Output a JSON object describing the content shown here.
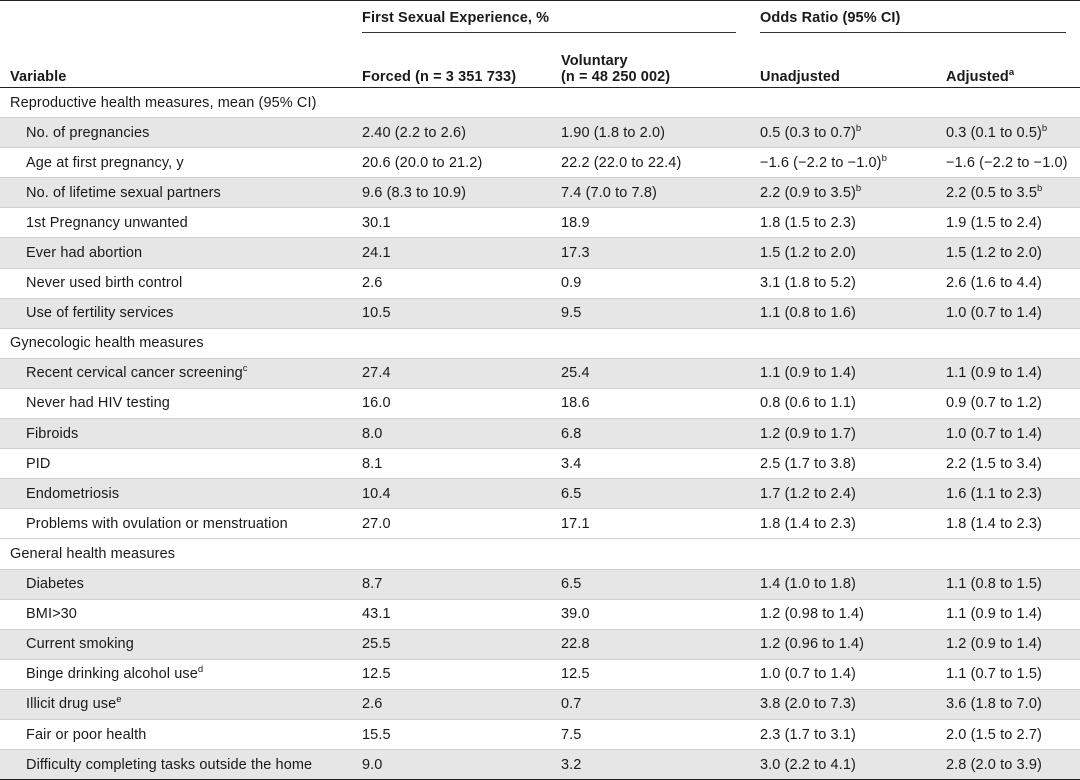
{
  "header": {
    "variable_label": "Variable",
    "group1_label": "First Sexual Experience, %",
    "group2_label": "Odds Ratio (95% CI)",
    "forced_label": "Forced (n = 3 351 733)",
    "voluntary_line1": "Voluntary",
    "voluntary_line2": "(n = 48 250 002)",
    "unadjusted_label": "Unadjusted",
    "adjusted_label": "Adjusted",
    "adjusted_sup": "a"
  },
  "sections": [
    {
      "title": "Reproductive health measures, mean (95% CI)",
      "rows": [
        {
          "variable": "No. of pregnancies",
          "variable_sup": "",
          "forced": "2.40 (2.2 to 2.6)",
          "voluntary": "1.90 (1.8 to 2.0)",
          "unadjusted": "0.5 (0.3 to 0.7)",
          "unadjusted_sup": "b",
          "adjusted": "0.3 (0.1 to 0.5)",
          "adjusted_sup": "b"
        },
        {
          "variable": "Age at first pregnancy, y",
          "variable_sup": "",
          "forced": "20.6 (20.0 to 21.2)",
          "voluntary": "22.2 (22.0 to 22.4)",
          "unadjusted": "−1.6 (−2.2 to −1.0)",
          "unadjusted_sup": "b",
          "adjusted": "−1.6 (−2.2 to −1.0)",
          "adjusted_sup": ""
        },
        {
          "variable": "No. of lifetime sexual partners",
          "variable_sup": "",
          "forced": "9.6 (8.3 to 10.9)",
          "voluntary": "7.4 (7.0 to 7.8)",
          "unadjusted": "2.2 (0.9 to 3.5)",
          "unadjusted_sup": "b",
          "adjusted": "2.2 (0.5 to 3.5",
          "adjusted_sup": "b"
        },
        {
          "variable": "1st Pregnancy unwanted",
          "variable_sup": "",
          "forced": "30.1",
          "voluntary": "18.9",
          "unadjusted": "1.8 (1.5 to 2.3)",
          "unadjusted_sup": "",
          "adjusted": "1.9 (1.5 to 2.4)",
          "adjusted_sup": ""
        },
        {
          "variable": "Ever had abortion",
          "variable_sup": "",
          "forced": "24.1",
          "voluntary": "17.3",
          "unadjusted": "1.5 (1.2 to 2.0)",
          "unadjusted_sup": "",
          "adjusted": "1.5 (1.2 to 2.0)",
          "adjusted_sup": ""
        },
        {
          "variable": "Never used birth control",
          "variable_sup": "",
          "forced": "2.6",
          "voluntary": "0.9",
          "unadjusted": "3.1 (1.8 to 5.2)",
          "unadjusted_sup": "",
          "adjusted": "2.6 (1.6 to 4.4)",
          "adjusted_sup": ""
        },
        {
          "variable": "Use of fertility services",
          "variable_sup": "",
          "forced": "10.5",
          "voluntary": "9.5",
          "unadjusted": "1.1 (0.8 to 1.6)",
          "unadjusted_sup": "",
          "adjusted": "1.0 (0.7 to 1.4)",
          "adjusted_sup": ""
        }
      ]
    },
    {
      "title": "Gynecologic health measures",
      "rows": [
        {
          "variable": "Recent cervical cancer screening",
          "variable_sup": "c",
          "forced": "27.4",
          "voluntary": "25.4",
          "unadjusted": "1.1 (0.9 to 1.4)",
          "unadjusted_sup": "",
          "adjusted": "1.1 (0.9 to 1.4)",
          "adjusted_sup": ""
        },
        {
          "variable": "Never had HIV testing",
          "variable_sup": "",
          "forced": "16.0",
          "voluntary": "18.6",
          "unadjusted": "0.8 (0.6 to 1.1)",
          "unadjusted_sup": "",
          "adjusted": "0.9 (0.7 to 1.2)",
          "adjusted_sup": ""
        },
        {
          "variable": "Fibroids",
          "variable_sup": "",
          "forced": "8.0",
          "voluntary": "6.8",
          "unadjusted": "1.2 (0.9 to 1.7)",
          "unadjusted_sup": "",
          "adjusted": "1.0 (0.7 to 1.4)",
          "adjusted_sup": ""
        },
        {
          "variable": "PID",
          "variable_sup": "",
          "forced": "8.1",
          "voluntary": "3.4",
          "unadjusted": "2.5 (1.7 to 3.8)",
          "unadjusted_sup": "",
          "adjusted": "2.2 (1.5 to 3.4)",
          "adjusted_sup": ""
        },
        {
          "variable": "Endometriosis",
          "variable_sup": "",
          "forced": "10.4",
          "voluntary": "6.5",
          "unadjusted": "1.7 (1.2 to 2.4)",
          "unadjusted_sup": "",
          "adjusted": "1.6 (1.1 to 2.3)",
          "adjusted_sup": ""
        },
        {
          "variable": "Problems with ovulation or menstruation",
          "variable_sup": "",
          "forced": "27.0",
          "voluntary": "17.1",
          "unadjusted": "1.8 (1.4 to 2.3)",
          "unadjusted_sup": "",
          "adjusted": "1.8 (1.4 to 2.3)",
          "adjusted_sup": ""
        }
      ]
    },
    {
      "title": "General health measures",
      "rows": [
        {
          "variable": "Diabetes",
          "variable_sup": "",
          "forced": "8.7",
          "voluntary": "6.5",
          "unadjusted": "1.4 (1.0 to 1.8)",
          "unadjusted_sup": "",
          "adjusted": "1.1 (0.8 to 1.5)",
          "adjusted_sup": ""
        },
        {
          "variable": "BMI>30",
          "variable_sup": "",
          "forced": "43.1",
          "voluntary": "39.0",
          "unadjusted": "1.2 (0.98 to 1.4)",
          "unadjusted_sup": "",
          "adjusted": "1.1 (0.9 to 1.4)",
          "adjusted_sup": ""
        },
        {
          "variable": "Current smoking",
          "variable_sup": "",
          "forced": "25.5",
          "voluntary": "22.8",
          "unadjusted": "1.2 (0.96 to 1.4)",
          "unadjusted_sup": "",
          "adjusted": "1.2 (0.9 to 1.4)",
          "adjusted_sup": ""
        },
        {
          "variable": "Binge drinking alcohol use",
          "variable_sup": "d",
          "forced": "12.5",
          "voluntary": "12.5",
          "unadjusted": "1.0 (0.7 to 1.4)",
          "unadjusted_sup": "",
          "adjusted": "1.1 (0.7 to 1.5)",
          "adjusted_sup": ""
        },
        {
          "variable": "Illicit drug use",
          "variable_sup": "e",
          "forced": "2.6",
          "voluntary": "0.7",
          "unadjusted": "3.8 (2.0 to 7.3)",
          "unadjusted_sup": "",
          "adjusted": "3.6 (1.8 to 7.0)",
          "adjusted_sup": ""
        },
        {
          "variable": "Fair or poor health",
          "variable_sup": "",
          "forced": "15.5",
          "voluntary": "7.5",
          "unadjusted": "2.3 (1.7 to 3.1)",
          "unadjusted_sup": "",
          "adjusted": "2.0 (1.5 to 2.7)",
          "adjusted_sup": ""
        },
        {
          "variable": "Difficulty completing tasks outside the home",
          "variable_sup": "",
          "forced": "9.0",
          "voluntary": "3.2",
          "unadjusted": "3.0 (2.2 to 4.1)",
          "unadjusted_sup": "",
          "adjusted": "2.8 (2.0 to 3.9)",
          "adjusted_sup": ""
        }
      ]
    }
  ]
}
